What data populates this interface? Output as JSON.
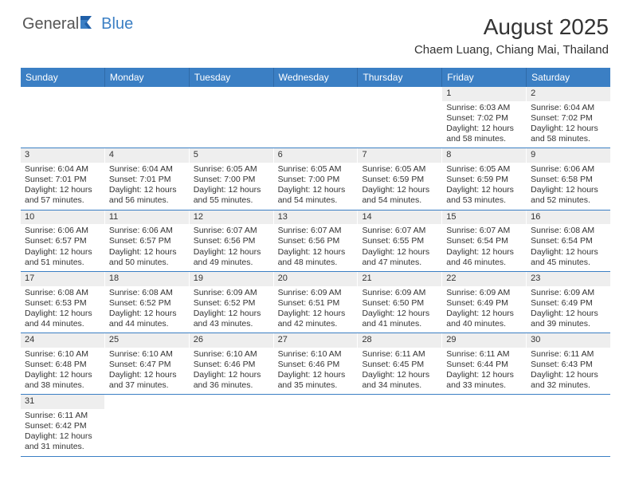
{
  "brand": {
    "part1": "General",
    "part2": "Blue"
  },
  "title": "August 2025",
  "subtitle": "Chaem Luang, Chiang Mai, Thailand",
  "colors": {
    "header_bg": "#3b7fc4",
    "header_border": "#2f6aa8",
    "daynum_bg": "#eeeeee",
    "week_divider": "#3b7fc4",
    "text": "#333333",
    "bg": "#ffffff"
  },
  "dayNames": [
    "Sunday",
    "Monday",
    "Tuesday",
    "Wednesday",
    "Thursday",
    "Friday",
    "Saturday"
  ],
  "firstDayOffset": 5,
  "days": [
    {
      "n": 1,
      "sunrise": "6:03 AM",
      "sunset": "7:02 PM",
      "daylight": "12 hours and 58 minutes."
    },
    {
      "n": 2,
      "sunrise": "6:04 AM",
      "sunset": "7:02 PM",
      "daylight": "12 hours and 58 minutes."
    },
    {
      "n": 3,
      "sunrise": "6:04 AM",
      "sunset": "7:01 PM",
      "daylight": "12 hours and 57 minutes."
    },
    {
      "n": 4,
      "sunrise": "6:04 AM",
      "sunset": "7:01 PM",
      "daylight": "12 hours and 56 minutes."
    },
    {
      "n": 5,
      "sunrise": "6:05 AM",
      "sunset": "7:00 PM",
      "daylight": "12 hours and 55 minutes."
    },
    {
      "n": 6,
      "sunrise": "6:05 AM",
      "sunset": "7:00 PM",
      "daylight": "12 hours and 54 minutes."
    },
    {
      "n": 7,
      "sunrise": "6:05 AM",
      "sunset": "6:59 PM",
      "daylight": "12 hours and 54 minutes."
    },
    {
      "n": 8,
      "sunrise": "6:05 AM",
      "sunset": "6:59 PM",
      "daylight": "12 hours and 53 minutes."
    },
    {
      "n": 9,
      "sunrise": "6:06 AM",
      "sunset": "6:58 PM",
      "daylight": "12 hours and 52 minutes."
    },
    {
      "n": 10,
      "sunrise": "6:06 AM",
      "sunset": "6:57 PM",
      "daylight": "12 hours and 51 minutes."
    },
    {
      "n": 11,
      "sunrise": "6:06 AM",
      "sunset": "6:57 PM",
      "daylight": "12 hours and 50 minutes."
    },
    {
      "n": 12,
      "sunrise": "6:07 AM",
      "sunset": "6:56 PM",
      "daylight": "12 hours and 49 minutes."
    },
    {
      "n": 13,
      "sunrise": "6:07 AM",
      "sunset": "6:56 PM",
      "daylight": "12 hours and 48 minutes."
    },
    {
      "n": 14,
      "sunrise": "6:07 AM",
      "sunset": "6:55 PM",
      "daylight": "12 hours and 47 minutes."
    },
    {
      "n": 15,
      "sunrise": "6:07 AM",
      "sunset": "6:54 PM",
      "daylight": "12 hours and 46 minutes."
    },
    {
      "n": 16,
      "sunrise": "6:08 AM",
      "sunset": "6:54 PM",
      "daylight": "12 hours and 45 minutes."
    },
    {
      "n": 17,
      "sunrise": "6:08 AM",
      "sunset": "6:53 PM",
      "daylight": "12 hours and 44 minutes."
    },
    {
      "n": 18,
      "sunrise": "6:08 AM",
      "sunset": "6:52 PM",
      "daylight": "12 hours and 44 minutes."
    },
    {
      "n": 19,
      "sunrise": "6:09 AM",
      "sunset": "6:52 PM",
      "daylight": "12 hours and 43 minutes."
    },
    {
      "n": 20,
      "sunrise": "6:09 AM",
      "sunset": "6:51 PM",
      "daylight": "12 hours and 42 minutes."
    },
    {
      "n": 21,
      "sunrise": "6:09 AM",
      "sunset": "6:50 PM",
      "daylight": "12 hours and 41 minutes."
    },
    {
      "n": 22,
      "sunrise": "6:09 AM",
      "sunset": "6:49 PM",
      "daylight": "12 hours and 40 minutes."
    },
    {
      "n": 23,
      "sunrise": "6:09 AM",
      "sunset": "6:49 PM",
      "daylight": "12 hours and 39 minutes."
    },
    {
      "n": 24,
      "sunrise": "6:10 AM",
      "sunset": "6:48 PM",
      "daylight": "12 hours and 38 minutes."
    },
    {
      "n": 25,
      "sunrise": "6:10 AM",
      "sunset": "6:47 PM",
      "daylight": "12 hours and 37 minutes."
    },
    {
      "n": 26,
      "sunrise": "6:10 AM",
      "sunset": "6:46 PM",
      "daylight": "12 hours and 36 minutes."
    },
    {
      "n": 27,
      "sunrise": "6:10 AM",
      "sunset": "6:46 PM",
      "daylight": "12 hours and 35 minutes."
    },
    {
      "n": 28,
      "sunrise": "6:11 AM",
      "sunset": "6:45 PM",
      "daylight": "12 hours and 34 minutes."
    },
    {
      "n": 29,
      "sunrise": "6:11 AM",
      "sunset": "6:44 PM",
      "daylight": "12 hours and 33 minutes."
    },
    {
      "n": 30,
      "sunrise": "6:11 AM",
      "sunset": "6:43 PM",
      "daylight": "12 hours and 32 minutes."
    },
    {
      "n": 31,
      "sunrise": "6:11 AM",
      "sunset": "6:42 PM",
      "daylight": "12 hours and 31 minutes."
    }
  ],
  "labels": {
    "sunrise": "Sunrise:",
    "sunset": "Sunset:",
    "daylight": "Daylight:"
  }
}
